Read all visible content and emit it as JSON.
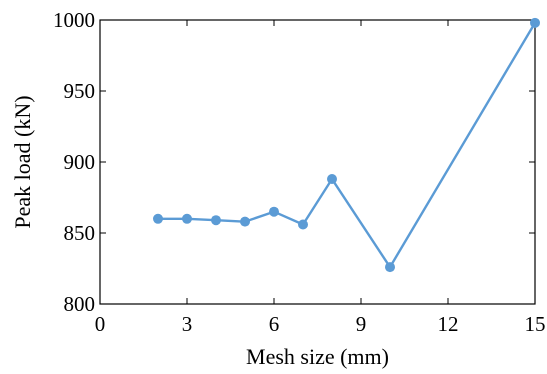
{
  "chart_data": {
    "type": "line",
    "xlabel": "Mesh size (mm)",
    "ylabel": "Peak load (kN)",
    "xlim": [
      0,
      15
    ],
    "ylim": [
      800,
      1000
    ],
    "x_ticks": [
      0,
      3,
      6,
      9,
      12,
      15
    ],
    "y_ticks": [
      800,
      850,
      900,
      950,
      1000
    ],
    "x_tick_labels": [
      "0",
      "3",
      "6",
      "9",
      "12",
      "15"
    ],
    "y_tick_labels": [
      "800",
      "850",
      "900",
      "950",
      "1000"
    ],
    "grid": false,
    "series": [
      {
        "color": "#5b9bd5",
        "marker": "circle",
        "x": [
          2,
          3,
          4,
          5,
          6,
          7,
          8,
          10,
          15
        ],
        "y": [
          860,
          860,
          859,
          858,
          865,
          856,
          888,
          826,
          998
        ]
      }
    ]
  }
}
